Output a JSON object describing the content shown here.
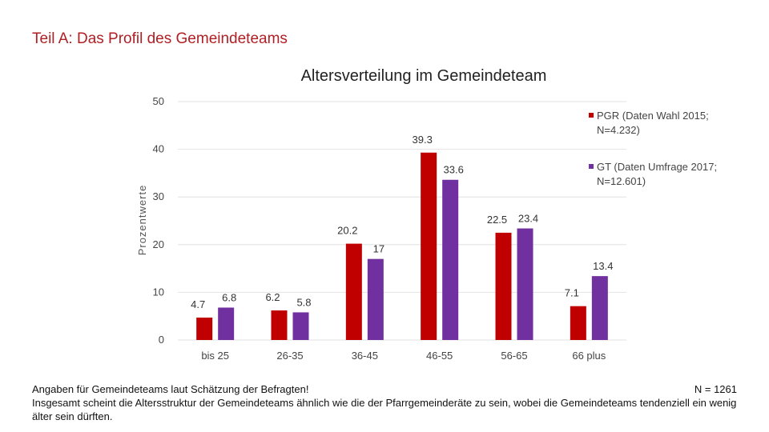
{
  "header": {
    "title": "Teil A: Das Profil des Gemeindeteams"
  },
  "chart_data": {
    "type": "bar",
    "title": "Altersverteilung im Gemeindeteam",
    "ylabel": "Prozentwerte",
    "xlabel": "",
    "ylim": [
      0,
      50
    ],
    "yticks": [
      "0",
      "10",
      "20",
      "30",
      "40",
      "50"
    ],
    "grid": true,
    "legend_position": "right",
    "categories": [
      "bis 25",
      "26-35",
      "36-45",
      "46-55",
      "56-65",
      "66 plus"
    ],
    "series": [
      {
        "name": "PGR (Daten Wahl 2015; N=4.232)",
        "color": "#c00000",
        "values": [
          4.7,
          6.2,
          20.2,
          39.3,
          22.5,
          7.1
        ]
      },
      {
        "name": "GT (Daten Umfrage 2017; N=12.601)",
        "color": "#7030a0",
        "values": [
          6.8,
          5.8,
          17,
          33.6,
          23.4,
          13.4
        ]
      }
    ]
  },
  "footer": {
    "line1": "Angaben für Gemeindeteams laut Schätzung der Befragten!",
    "n_label": "N = 1261",
    "line2": "Insgesamt scheint die Altersstruktur der Gemeindeteams  ähnlich wie die der Pfarrgemeinderäte zu sein, wobei die Gemeindeteams tendenziell ein wenig älter sein dürften."
  }
}
